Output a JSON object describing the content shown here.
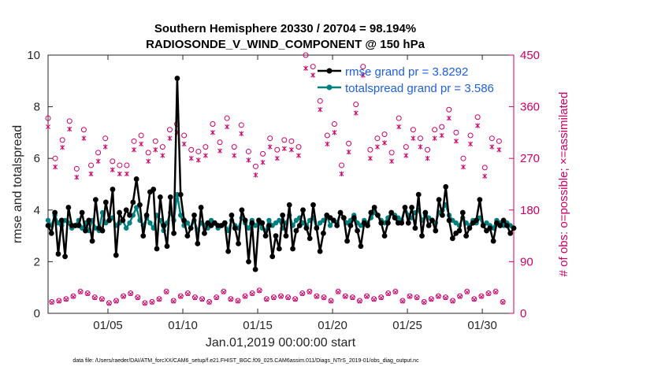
{
  "chart_data": {
    "type": "line",
    "title": "Southern Hemisphere 20330 / 20704 = 98.194%",
    "subtitle": "RADIOSONDE_V_WIND_COMPONENT @ 150 hPa",
    "xlabel": "Jan.01,2019 00:00:00 start",
    "ylabel": "rmse and totalspread",
    "ylabel_right": "# of obs: o=possible; ×=assimilated",
    "xlim": [
      1,
      32.1
    ],
    "ylim": [
      0,
      10
    ],
    "ylim_right": [
      0,
      450
    ],
    "xticks": [
      5,
      10,
      15,
      20,
      25,
      30
    ],
    "xtick_labels": [
      "01/05",
      "01/10",
      "01/15",
      "01/20",
      "01/25",
      "01/30"
    ],
    "yticks": [
      0,
      2,
      4,
      6,
      8,
      10
    ],
    "yticks_right": [
      0,
      90,
      180,
      270,
      360,
      450
    ],
    "footer": "data file: /Users/raeder/DAI/ATM_forcXX/CAM6_setup/f.e21.FHIST_BGC.f09_025.CAM6assim.011/Diags_NTrS_2019-01/obs_diag_output.nc",
    "colors": {
      "rmse": "#000000",
      "spread": "#00807f",
      "obs": "#cc0066",
      "legend_text": "#1f5fe0"
    },
    "series": [
      {
        "name": "rmse grand pr = 3.8292",
        "values": [
          3.4,
          3.1,
          3.9,
          2.3,
          3.6,
          2.2,
          4.1,
          3.4,
          3.4,
          3.4,
          3.9,
          3.2,
          3.6,
          2.8,
          4.4,
          3.3,
          3.2,
          4.3,
          3.6,
          4.8,
          2.25,
          3.9,
          3.6,
          4.0,
          3.8,
          4.3,
          5.2,
          4.2,
          3.0,
          3.8,
          4.7,
          4.8,
          2.5,
          4.5,
          3.4,
          2.6,
          4.5,
          3.1,
          9.1,
          4.6,
          3.6,
          3.0,
          3.3,
          3.8,
          2.7,
          4.1,
          3.1,
          3.5,
          3.4,
          3.5,
          3.4,
          3.4,
          3.5,
          2.4,
          3.8,
          3.3,
          2.7,
          4.0,
          3.6,
          2.0,
          3.5,
          1.7,
          3.6,
          3.5,
          3.0,
          3.4,
          2.2,
          3.0,
          2.5,
          3.8,
          3.0,
          4.2,
          2.5,
          3.2,
          3.4,
          4.0,
          3.3,
          2.9,
          4.2,
          3.3,
          2.4,
          3.1,
          3.8,
          3.7,
          3.6,
          3.4,
          3.9,
          3.7,
          2.8,
          3.4,
          3.7,
          3.2,
          2.6,
          3.5,
          3.4,
          3.9,
          4.1,
          3.8,
          3.5,
          3.0,
          3.5,
          3.9,
          3.7,
          3.5,
          3.5,
          4.1,
          3.5,
          4.1,
          3.3,
          4.6,
          3.0,
          3.9,
          3.4,
          3.6,
          3.2,
          4.4,
          3.8,
          4.9,
          3.6,
          2.9,
          3.1,
          3.2,
          3.9,
          3.0,
          3.3,
          3.5,
          3.6,
          4.4,
          3.4,
          3.2,
          3.3,
          2.8,
          3.5,
          3.4,
          3.6,
          3.4,
          3.1,
          3.3
        ]
      },
      {
        "name": "totalspread grand pr = 3.586",
        "values": [
          3.6,
          3.4,
          3.8,
          3.5,
          3.4,
          3.6,
          3.5,
          3.3,
          3.4,
          3.6,
          3.3,
          3.5,
          3.2,
          3.6,
          3.3,
          3.2,
          3.9,
          3.5,
          3.6,
          3.7,
          3.4,
          3.5,
          3.6,
          3.3,
          3.5,
          3.8,
          4.1,
          3.6,
          3.4,
          3.7,
          3.5,
          3.3,
          3.8,
          3.6,
          3.2,
          3.5,
          3.9,
          3.6,
          4.6,
          3.8,
          3.4,
          3.5,
          3.3,
          3.6,
          3.2,
          3.5,
          3.4,
          3.3,
          3.6,
          3.5,
          3.3,
          3.4,
          3.5,
          3.2,
          3.6,
          3.4,
          3.3,
          3.7,
          3.5,
          3.3,
          3.6,
          3.4,
          3.5,
          3.3,
          3.2,
          3.6,
          3.4,
          3.5,
          3.6,
          3.3,
          3.5,
          3.8,
          3.4,
          3.6,
          3.7,
          3.5,
          3.4,
          3.6,
          3.7,
          3.3,
          3.5,
          3.6,
          3.8,
          3.4,
          3.6,
          3.5,
          3.9,
          3.7,
          3.5,
          3.6,
          3.8,
          3.5,
          3.4,
          3.6,
          3.5,
          3.7,
          3.9,
          3.8,
          3.6,
          3.5,
          3.7,
          3.9,
          3.8,
          3.7,
          3.6,
          4.1,
          3.8,
          3.7,
          3.9,
          4.0,
          3.6,
          3.8,
          3.7,
          3.6,
          3.5,
          3.9,
          4.0,
          4.2,
          3.8,
          3.6,
          3.5,
          3.4,
          3.7,
          3.5,
          3.4,
          3.6,
          3.5,
          3.7,
          3.4,
          3.5,
          3.4,
          3.3,
          3.6,
          3.5,
          3.4,
          3.5,
          3.4,
          3.3
        ]
      }
    ],
    "obs_possible_day": [
      340,
      270,
      302,
      335,
      252,
      320,
      258,
      280,
      305,
      265,
      258,
      258,
      300,
      310,
      280,
      300,
      290,
      320,
      330,
      310,
      285,
      282,
      290,
      330,
      298,
      340,
      290,
      328,
      282,
      256,
      278,
      305,
      285,
      302,
      300,
      290,
      450,
      430,
      370,
      310,
      330,
      258,
      296,
      364,
      430,
      285,
      305,
      312,
      280,
      340,
      290,
      320,
      305,
      285,
      320,
      325,
      355,
      315,
      270,
      310,
      342,
      254,
      305,
      300
    ],
    "obs_assimilated_day": [
      336,
      266,
      300,
      332,
      248,
      316,
      254,
      276,
      301,
      261,
      254,
      254,
      296,
      306,
      276,
      296,
      286,
      316,
      326,
      306,
      281,
      278,
      286,
      326,
      294,
      336,
      286,
      324,
      278,
      252,
      274,
      301,
      281,
      298,
      296,
      286,
      438,
      426,
      366,
      306,
      326,
      254,
      292,
      360,
      426,
      281,
      301,
      308,
      276,
      336,
      286,
      316,
      301,
      281,
      316,
      321,
      351,
      311,
      266,
      306,
      338,
      250,
      301,
      296
    ],
    "obs_possible_night": [
      20,
      22,
      25,
      30,
      38,
      35,
      28,
      25,
      18,
      22,
      30,
      35,
      28,
      18,
      20,
      25,
      38,
      22,
      30,
      35,
      28,
      25,
      20,
      28,
      38,
      25,
      22,
      30,
      35,
      40,
      25,
      28,
      30,
      28,
      25,
      35,
      38,
      30,
      28,
      22,
      38,
      30,
      28,
      22,
      30,
      25,
      28,
      35,
      38,
      22,
      30,
      28,
      20,
      25,
      30,
      28,
      22,
      30,
      38,
      25,
      30,
      35,
      38,
      20
    ],
    "obs_assimilated_night": [
      19,
      21,
      24,
      29,
      37,
      34,
      27,
      24,
      17,
      21,
      29,
      34,
      27,
      17,
      19,
      24,
      37,
      21,
      29,
      34,
      27,
      24,
      19,
      27,
      37,
      24,
      21,
      29,
      34,
      39,
      24,
      27,
      29,
      27,
      24,
      34,
      37,
      29,
      27,
      21,
      37,
      29,
      27,
      21,
      29,
      24,
      27,
      34,
      37,
      21,
      29,
      27,
      19,
      24,
      29,
      27,
      21,
      29,
      37,
      24,
      29,
      34,
      37,
      19
    ]
  }
}
